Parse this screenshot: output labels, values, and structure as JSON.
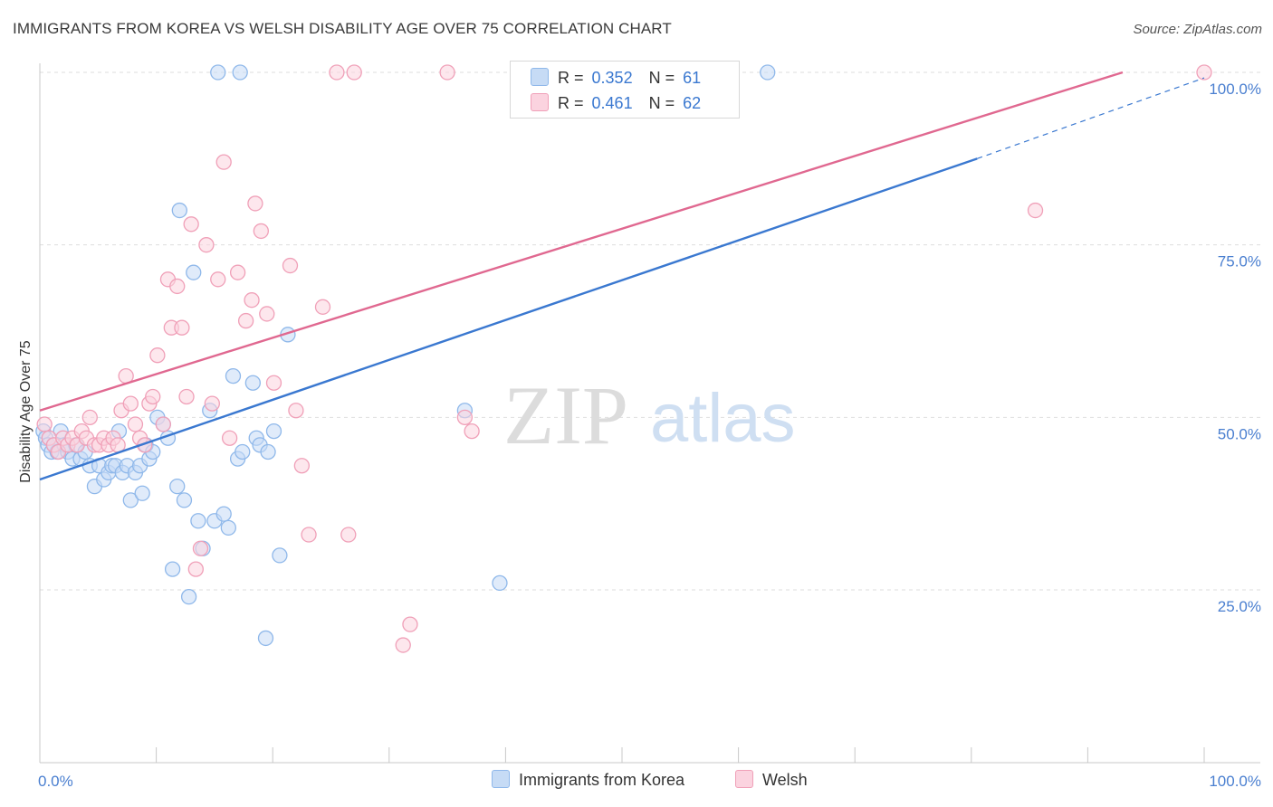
{
  "header": {
    "title": "IMMIGRANTS FROM KOREA VS WELSH DISABILITY AGE OVER 75 CORRELATION CHART",
    "source": "Source: ZipAtlas.com"
  },
  "watermark": {
    "zip": "ZIP",
    "atlas": "atlas"
  },
  "legend": {
    "rows": [
      {
        "r_label": "R =",
        "r_value": "0.352",
        "n_label": "N =",
        "n_value": "61",
        "color": "#8fb8ea",
        "fill": "#c6dbf5"
      },
      {
        "r_label": "R =",
        "r_value": "0.461",
        "n_label": "N =",
        "n_value": "62",
        "color": "#f0a0b8",
        "fill": "#fbd3df"
      }
    ]
  },
  "bottom_legend": [
    {
      "label": "Immigrants from Korea",
      "color": "#8fb8ea",
      "fill": "#c6dbf5"
    },
    {
      "label": "Welsh",
      "color": "#f0a0b8",
      "fill": "#fbd3df"
    }
  ],
  "chart_data": {
    "type": "scatter",
    "title": "IMMIGRANTS FROM KOREA VS WELSH DISABILITY AGE OVER 75 CORRELATION CHART",
    "xlabel": "",
    "ylabel": "Disability Age Over 75",
    "xlim": [
      0,
      100
    ],
    "ylim": [
      0,
      100
    ],
    "x_tick_labels": [
      "0.0%",
      "100.0%"
    ],
    "y_tick_labels": [
      "25.0%",
      "50.0%",
      "75.0%",
      "100.0%"
    ],
    "y_tick_values": [
      25,
      50,
      75,
      100
    ],
    "grid": true,
    "legend_position": "top-center",
    "series": [
      {
        "name": "Immigrants from Korea",
        "color": "#3a78d0",
        "marker_stroke": "#8fb8ea",
        "marker_fill": "#c6dbf5",
        "trend": {
          "x0": 0,
          "y0": 41,
          "x1": 80.5,
          "y1": 87.5,
          "dash_to_x": 100,
          "dash_to_y": 99.2
        },
        "points": [
          [
            0.3,
            48
          ],
          [
            0.5,
            47
          ],
          [
            0.7,
            46
          ],
          [
            1.0,
            45
          ],
          [
            1.2,
            46
          ],
          [
            1.5,
            45
          ],
          [
            1.8,
            48
          ],
          [
            2.1,
            46
          ],
          [
            2.4,
            45
          ],
          [
            2.8,
            44
          ],
          [
            3.1,
            46
          ],
          [
            3.5,
            44
          ],
          [
            3.9,
            45
          ],
          [
            4.3,
            43
          ],
          [
            4.7,
            40
          ],
          [
            5.1,
            43
          ],
          [
            5.5,
            41
          ],
          [
            5.9,
            42
          ],
          [
            6.2,
            43
          ],
          [
            6.5,
            43
          ],
          [
            6.8,
            48
          ],
          [
            7.1,
            42
          ],
          [
            7.5,
            43
          ],
          [
            7.8,
            38
          ],
          [
            8.2,
            42
          ],
          [
            8.6,
            43
          ],
          [
            8.8,
            39
          ],
          [
            9.1,
            46
          ],
          [
            9.4,
            44
          ],
          [
            9.7,
            45
          ],
          [
            10.1,
            50
          ],
          [
            10.6,
            49
          ],
          [
            11.0,
            47
          ],
          [
            11.4,
            28
          ],
          [
            11.8,
            40
          ],
          [
            12.0,
            80
          ],
          [
            12.4,
            38
          ],
          [
            12.8,
            24
          ],
          [
            13.2,
            71
          ],
          [
            13.6,
            35
          ],
          [
            14.0,
            31
          ],
          [
            14.6,
            51
          ],
          [
            15.0,
            35
          ],
          [
            15.8,
            36
          ],
          [
            16.2,
            34
          ],
          [
            16.6,
            56
          ],
          [
            17.0,
            44
          ],
          [
            17.4,
            45
          ],
          [
            18.3,
            55
          ],
          [
            18.6,
            47
          ],
          [
            18.9,
            46
          ],
          [
            19.4,
            18
          ],
          [
            19.6,
            45
          ],
          [
            20.1,
            48
          ],
          [
            20.6,
            30
          ],
          [
            21.3,
            62
          ],
          [
            36.5,
            51
          ],
          [
            39.5,
            26
          ],
          [
            62.5,
            100
          ],
          [
            15.3,
            100
          ],
          [
            17.2,
            100
          ]
        ]
      },
      {
        "name": "Welsh",
        "color": "#e06890",
        "marker_stroke": "#f0a0b8",
        "marker_fill": "#fbd3df",
        "trend": {
          "x0": 0,
          "y0": 51,
          "x1": 93,
          "y1": 100
        },
        "points": [
          [
            0.4,
            49
          ],
          [
            0.8,
            47
          ],
          [
            1.2,
            46
          ],
          [
            1.6,
            45
          ],
          [
            2.0,
            47
          ],
          [
            2.4,
            46
          ],
          [
            2.8,
            47
          ],
          [
            3.2,
            46
          ],
          [
            3.6,
            48
          ],
          [
            4.0,
            47
          ],
          [
            4.3,
            50
          ],
          [
            4.7,
            46
          ],
          [
            5.1,
            46
          ],
          [
            5.5,
            47
          ],
          [
            5.9,
            46
          ],
          [
            6.3,
            47
          ],
          [
            6.7,
            46
          ],
          [
            7.0,
            51
          ],
          [
            7.4,
            56
          ],
          [
            7.8,
            52
          ],
          [
            8.2,
            49
          ],
          [
            8.6,
            47
          ],
          [
            9.0,
            46
          ],
          [
            9.4,
            52
          ],
          [
            9.7,
            53
          ],
          [
            10.1,
            59
          ],
          [
            10.6,
            49
          ],
          [
            11.0,
            70
          ],
          [
            11.3,
            63
          ],
          [
            11.8,
            69
          ],
          [
            12.2,
            63
          ],
          [
            12.6,
            53
          ],
          [
            13.0,
            78
          ],
          [
            13.4,
            28
          ],
          [
            13.8,
            31
          ],
          [
            14.3,
            75
          ],
          [
            14.8,
            52
          ],
          [
            15.3,
            70
          ],
          [
            15.8,
            87
          ],
          [
            16.3,
            47
          ],
          [
            17.0,
            71
          ],
          [
            17.7,
            64
          ],
          [
            18.2,
            67
          ],
          [
            18.5,
            81
          ],
          [
            19.0,
            77
          ],
          [
            19.5,
            65
          ],
          [
            20.1,
            55
          ],
          [
            21.5,
            72
          ],
          [
            22.0,
            51
          ],
          [
            22.5,
            43
          ],
          [
            23.1,
            33
          ],
          [
            24.3,
            66
          ],
          [
            26.5,
            33
          ],
          [
            31.2,
            17
          ],
          [
            31.8,
            20
          ],
          [
            36.5,
            50
          ],
          [
            37.1,
            48
          ],
          [
            25.5,
            100
          ],
          [
            27.0,
            100
          ],
          [
            35.0,
            100
          ],
          [
            85.5,
            80
          ],
          [
            100.0,
            100
          ]
        ]
      }
    ]
  }
}
